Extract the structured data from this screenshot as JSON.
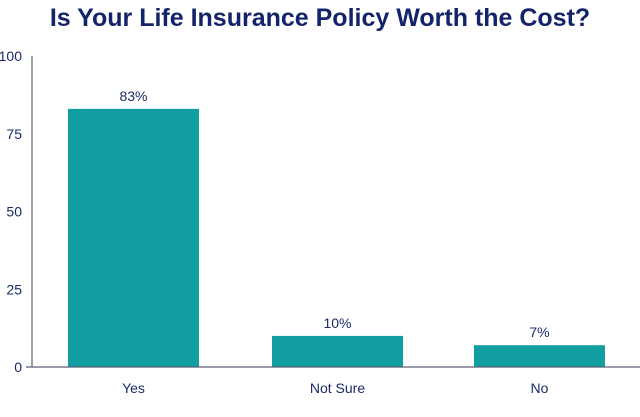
{
  "chart_data": {
    "type": "bar",
    "title": "Is Your Life Insurance Policy Worth the Cost?",
    "categories": [
      "Yes",
      "Not Sure",
      "No"
    ],
    "values": [
      83,
      10,
      7
    ],
    "data_labels": [
      "83%",
      "10%",
      "7%"
    ],
    "xlabel": "",
    "ylabel": "",
    "ylim": [
      0,
      100
    ],
    "yticks": [
      0,
      25,
      50,
      75,
      100
    ],
    "grid": false,
    "colors": {
      "bar": "#109ea1",
      "text": "#1b2a6b",
      "axis": "#5a6275"
    }
  }
}
